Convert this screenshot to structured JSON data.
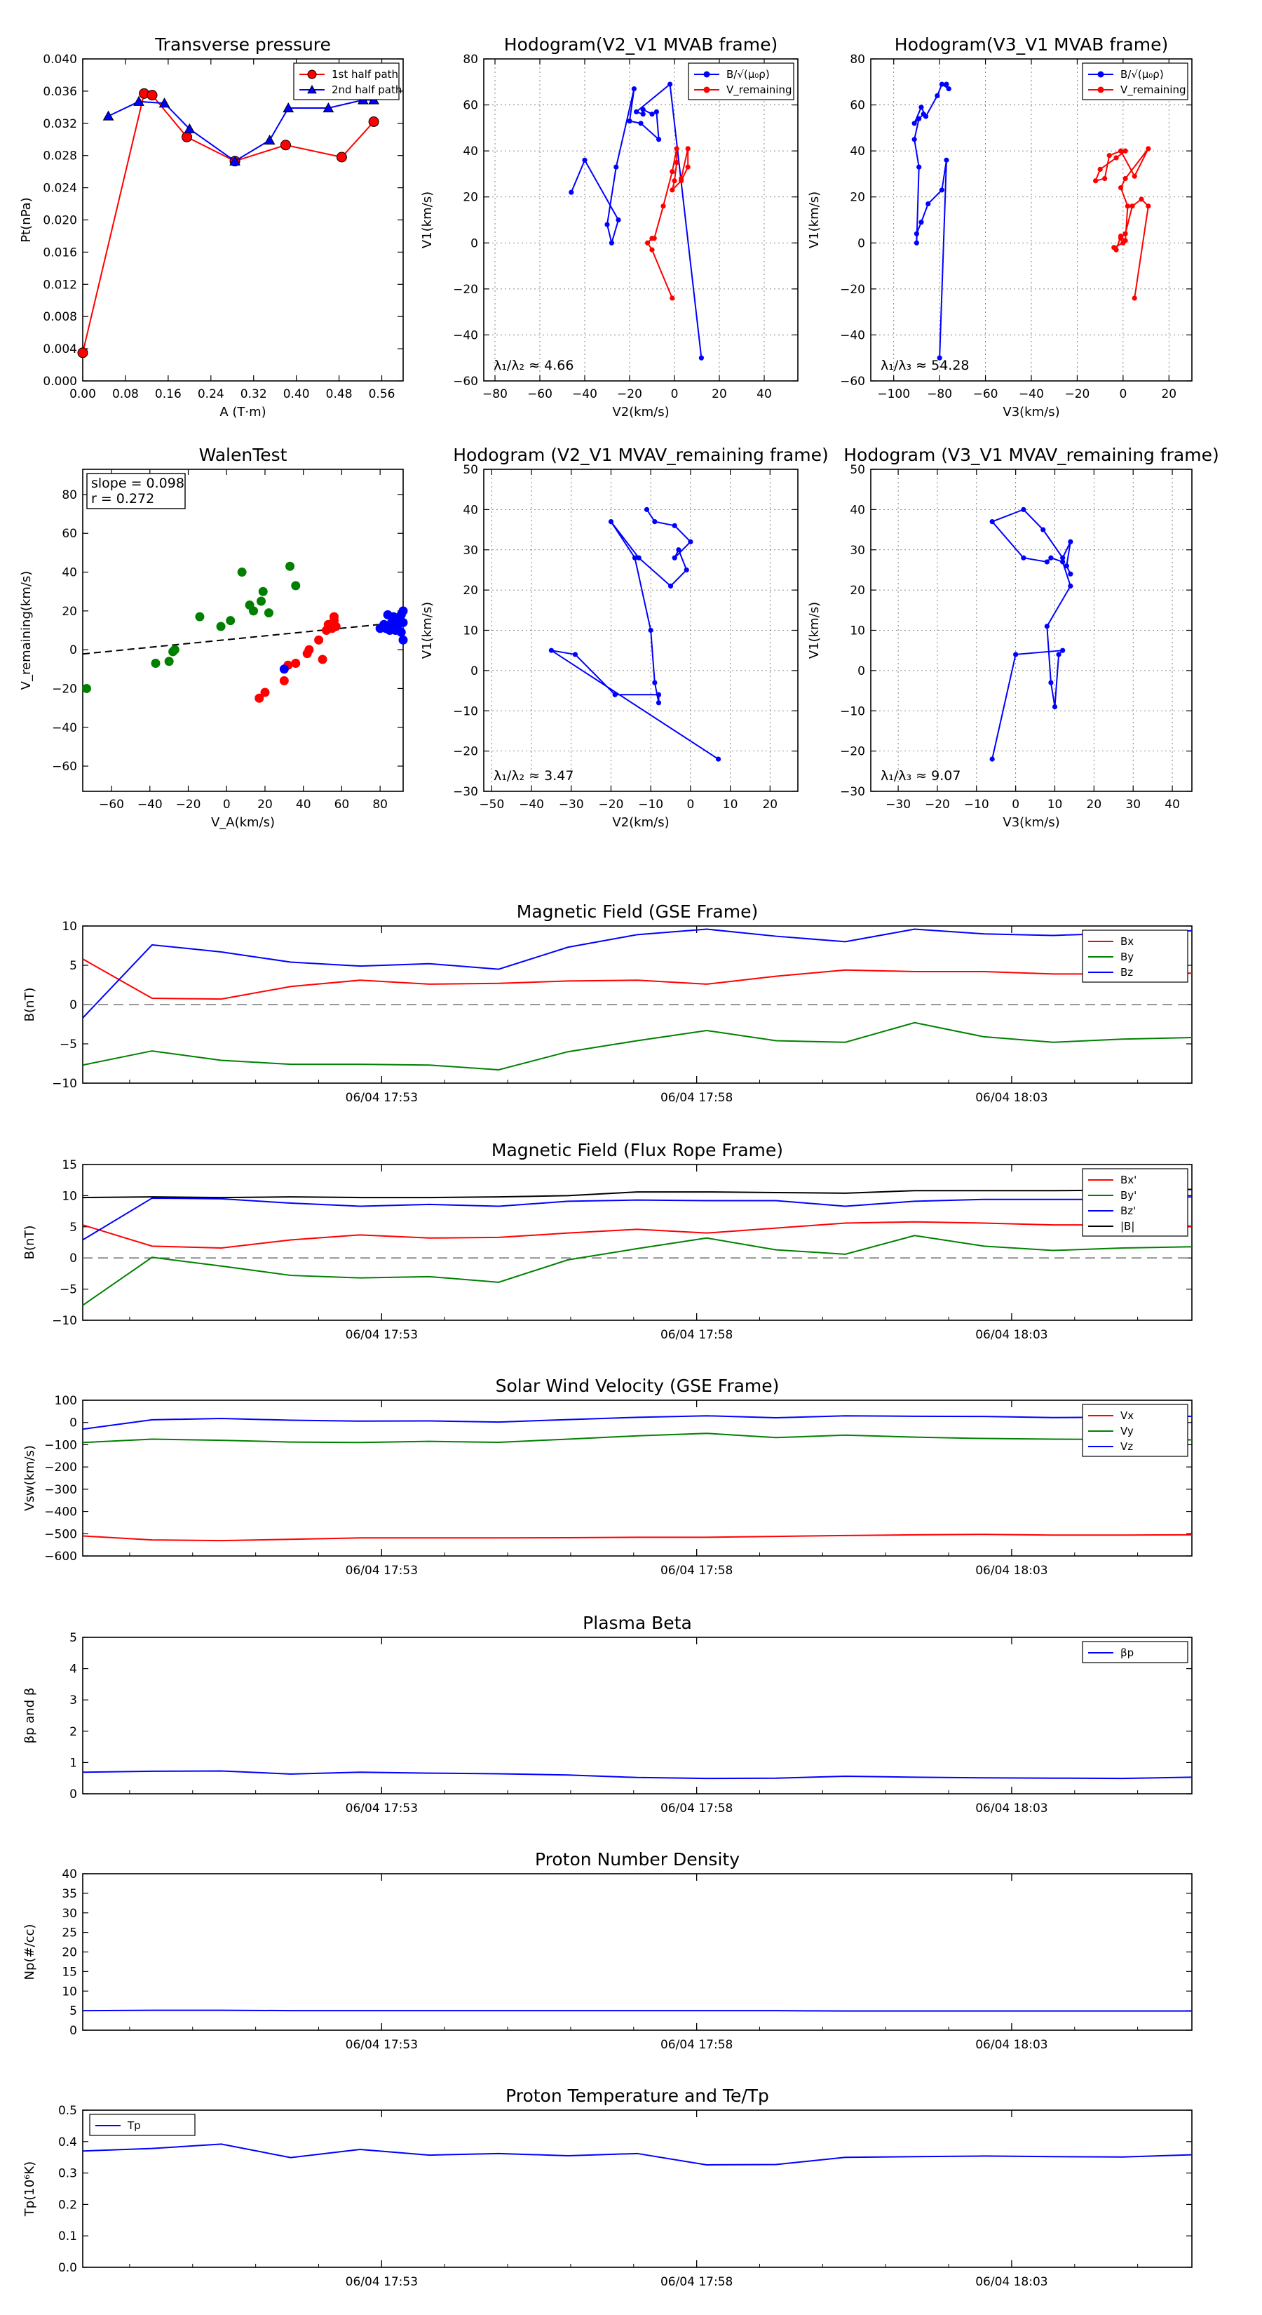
{
  "chart_data": [
    {
      "id": "pt",
      "type": "line",
      "title": "Transverse pressure",
      "xlabel": "A (T·m)",
      "ylabel": "Pt(nPa)",
      "xlim": [
        0.0,
        0.6
      ],
      "ylim": [
        0.0,
        0.04
      ],
      "xticks": [
        0.0,
        0.08,
        0.16,
        0.24,
        0.32,
        0.4,
        0.48,
        0.56
      ],
      "yticks": [
        0.0,
        0.004,
        0.008,
        0.012,
        0.016,
        0.02,
        0.024,
        0.028,
        0.032,
        0.036,
        0.04
      ],
      "xtick_labels": [
        "0.00",
        "0.08",
        "0.16",
        "0.24",
        "0.32",
        "0.40",
        "0.48",
        "0.56"
      ],
      "ytick_labels": [
        "0.000",
        "0.004",
        "0.008",
        "0.012",
        "0.016",
        "0.020",
        "0.024",
        "0.028",
        "0.032",
        "0.036",
        "0.040"
      ],
      "grid": false,
      "legend_position": "top-right",
      "series": [
        {
          "name": "1st half path",
          "color": "#ff0000",
          "marker": "circle",
          "x": [
            0.0,
            0.115,
            0.13,
            0.195,
            0.285,
            0.38,
            0.485,
            0.545
          ],
          "y": [
            0.0035,
            0.0357,
            0.0355,
            0.0303,
            0.0273,
            0.0293,
            0.0278,
            0.0322
          ]
        },
        {
          "name": "2nd half path",
          "color": "#0000ff",
          "marker": "triangle",
          "x": [
            0.048,
            0.105,
            0.153,
            0.2,
            0.285,
            0.35,
            0.385,
            0.46,
            0.525,
            0.545
          ],
          "y": [
            0.0329,
            0.0347,
            0.0345,
            0.0313,
            0.0273,
            0.0299,
            0.0339,
            0.0339,
            0.0349,
            0.0349
          ]
        }
      ]
    },
    {
      "id": "h1",
      "type": "line",
      "title": "Hodogram(V2_V1 MVAB frame)",
      "xlabel": "V2(km/s)",
      "ylabel": "V1(km/s)",
      "xlim": [
        -85,
        55
      ],
      "ylim": [
        -60,
        80
      ],
      "xticks": [
        -80,
        -60,
        -40,
        -20,
        0,
        20,
        40
      ],
      "yticks": [
        -60,
        -40,
        -20,
        0,
        20,
        40,
        60,
        80
      ],
      "grid": true,
      "legend_position": "top-right",
      "annotation": "λ₁/λ₂ ≈ 4.66",
      "series": [
        {
          "name": "B/√(μ₀ρ)",
          "color": "#0000ff",
          "x": [
            12,
            -2,
            -17,
            -14,
            -14,
            -10,
            -8,
            -7,
            -15,
            -20,
            -18,
            -26,
            -30,
            -28,
            -25,
            -40,
            -46
          ],
          "y": [
            -50,
            69,
            57,
            56,
            58,
            56,
            57,
            45,
            52,
            53,
            67,
            33,
            8,
            0,
            10,
            36,
            22
          ]
        },
        {
          "name": "V_remaining",
          "color": "#ff0000",
          "x": [
            -1,
            -10,
            -12,
            -10,
            -9,
            -5,
            -1,
            1,
            1,
            0,
            -1,
            3,
            6,
            6,
            3
          ],
          "y": [
            -24,
            -3,
            0,
            2,
            2,
            16,
            31,
            41,
            35,
            27,
            23,
            27,
            33,
            41,
            28
          ]
        }
      ]
    },
    {
      "id": "h2",
      "type": "line",
      "title": "Hodogram(V3_V1 MVAB frame)",
      "xlabel": "V3(km/s)",
      "ylabel": "V1(km/s)",
      "xlim": [
        -110,
        30
      ],
      "ylim": [
        -60,
        80
      ],
      "xticks": [
        -100,
        -80,
        -60,
        -40,
        -20,
        0,
        20
      ],
      "yticks": [
        -60,
        -40,
        -20,
        0,
        20,
        40,
        60,
        80
      ],
      "grid": true,
      "legend_position": "top-right",
      "annotation": "λ₁/λ₃ ≈ 54.28",
      "series": [
        {
          "name": "B/√(μ₀ρ)",
          "color": "#0000ff",
          "x": [
            -80,
            -77,
            -79,
            -85,
            -88,
            -90,
            -90,
            -89,
            -91,
            -89,
            -87,
            -91,
            -88,
            -86,
            -81,
            -79,
            -76,
            -77
          ],
          "y": [
            -50,
            36,
            23,
            17,
            9,
            4,
            0,
            33,
            45,
            54,
            56,
            52,
            59,
            55,
            64,
            69,
            67,
            69
          ]
        },
        {
          "name": "V_remaining",
          "color": "#ff0000",
          "x": [
            5,
            11,
            8,
            4,
            1,
            -1,
            0,
            -4,
            -3,
            -1,
            1,
            2,
            -1,
            1,
            11,
            5,
            -1,
            -6,
            -8,
            -12,
            -10,
            -3,
            1
          ],
          "y": [
            -24,
            16,
            19,
            16,
            4,
            2,
            0,
            -2,
            -3,
            3,
            1,
            16,
            24,
            28,
            41,
            29,
            40,
            38,
            28,
            27,
            32,
            37,
            40
          ]
        }
      ]
    },
    {
      "id": "walen",
      "type": "scatter",
      "title": "WalenTest",
      "xlabel": "V_A(km/s)",
      "ylabel": "V_remaining(km/s)",
      "xlim": [
        -75,
        92
      ],
      "ylim": [
        -73,
        93
      ],
      "xticks": [
        -60,
        -40,
        -20,
        0,
        20,
        40,
        60,
        80
      ],
      "yticks": [
        -60,
        -40,
        -20,
        0,
        20,
        40,
        60,
        80
      ],
      "grid": false,
      "annotation_lines": [
        "slope = 0.098",
        "r = 0.272"
      ],
      "fit_line": {
        "x": [
          -75,
          92
        ],
        "y": [
          -2.2,
          14.2
        ],
        "color": "#000000",
        "style": "dashed"
      },
      "series": [
        {
          "name": "",
          "color": "#008000",
          "x": [
            -73,
            -37,
            -30,
            -28,
            -27,
            -14,
            -3,
            2,
            8,
            12,
            14,
            18,
            19,
            22,
            33,
            36
          ],
          "y": [
            -20,
            -7,
            -6,
            -1,
            0,
            17,
            12,
            15,
            40,
            23,
            20,
            25,
            30,
            19,
            43,
            33
          ]
        },
        {
          "name": "",
          "color": "#ff0000",
          "x": [
            17,
            20,
            30,
            32,
            36,
            42,
            43,
            48,
            50,
            52,
            53,
            54,
            55,
            56,
            56,
            57
          ],
          "y": [
            -25,
            -22,
            -16,
            -8,
            -7,
            -2,
            0,
            5,
            -5,
            10,
            13,
            13,
            11,
            15,
            17,
            12
          ]
        },
        {
          "name": "",
          "color": "#0000ff",
          "x": [
            30,
            80,
            82,
            83,
            84,
            85,
            86,
            87,
            88,
            89,
            90,
            91,
            91,
            92,
            92,
            92
          ],
          "y": [
            -10,
            11,
            13,
            11,
            18,
            10,
            14,
            17,
            10,
            12,
            15,
            9,
            18,
            14,
            20,
            5
          ]
        }
      ]
    },
    {
      "id": "h3",
      "type": "line",
      "title": "Hodogram (V2_V1 MVAV_remaining frame)",
      "xlabel": "V2(km/s)",
      "ylabel": "V1(km/s)",
      "xlim": [
        -52,
        27
      ],
      "ylim": [
        -30,
        50
      ],
      "xticks": [
        -50,
        -40,
        -30,
        -20,
        -10,
        0,
        10,
        20
      ],
      "yticks": [
        -30,
        -20,
        -10,
        0,
        10,
        20,
        30,
        40,
        50
      ],
      "grid": true,
      "annotation": "λ₁/λ₂ ≈ 3.47",
      "series": [
        {
          "name": "",
          "color": "#0000ff",
          "x": [
            7,
            -35,
            -29,
            -19,
            -8,
            -8,
            -9,
            -10,
            -14,
            -20,
            -13,
            -5,
            -1,
            -3,
            -4,
            0,
            -4,
            -9,
            -11
          ],
          "y": [
            -22,
            5,
            4,
            -6,
            -6,
            -8,
            -3,
            10,
            28,
            37,
            28,
            21,
            25,
            30,
            28,
            32,
            36,
            37,
            40
          ]
        }
      ]
    },
    {
      "id": "h4",
      "type": "line",
      "title": "Hodogram (V3_V1 MVAV_remaining frame)",
      "xlabel": "V3(km/s)",
      "ylabel": "V1(km/s)",
      "xlim": [
        -37,
        45
      ],
      "ylim": [
        -30,
        50
      ],
      "xticks": [
        -30,
        -20,
        -10,
        0,
        10,
        20,
        30,
        40
      ],
      "yticks": [
        -30,
        -20,
        -10,
        0,
        10,
        20,
        30,
        40,
        50
      ],
      "grid": true,
      "annotation": "λ₁/λ₃ ≈ 9.07",
      "series": [
        {
          "name": "",
          "color": "#0000ff",
          "x": [
            -6,
            0,
            12,
            11,
            10,
            9,
            8,
            14,
            12,
            9,
            8,
            2,
            -6,
            2,
            7,
            12,
            14,
            13,
            14
          ],
          "y": [
            -22,
            4,
            5,
            4,
            -9,
            -3,
            11,
            21,
            27,
            28,
            27,
            28,
            37,
            40,
            35,
            28,
            32,
            26,
            24
          ]
        }
      ]
    },
    {
      "id": "bgse",
      "type": "line",
      "title": "Magnetic Field (GSE Frame)",
      "ylabel": "B(nT)",
      "ylim": [
        -10,
        10
      ],
      "yticks": [
        -10,
        -5,
        0,
        5,
        10
      ],
      "xtick_labels": [
        "06/04 17:53",
        "06/04 17:58",
        "06/04 18:03"
      ],
      "legend_position": "top-right",
      "zero_line": true,
      "series": [
        {
          "name": "Bx",
          "color": "#ff0000",
          "values": [
            5.8,
            0.8,
            0.7,
            2.3,
            3.1,
            2.6,
            2.7,
            3.0,
            3.1,
            2.6,
            3.6,
            4.4,
            4.2,
            4.2,
            3.9,
            3.9,
            4.0
          ]
        },
        {
          "name": "By",
          "color": "#008000",
          "values": [
            -7.7,
            -5.9,
            -7.1,
            -7.6,
            -7.6,
            -7.7,
            -8.3,
            -6.0,
            -4.6,
            -3.3,
            -4.6,
            -4.8,
            -2.3,
            -4.1,
            -4.8,
            -4.4,
            -4.2
          ]
        },
        {
          "name": "Bz",
          "color": "#0000ff",
          "values": [
            -1.7,
            7.6,
            6.7,
            5.4,
            4.9,
            5.2,
            4.5,
            7.3,
            8.9,
            9.6,
            8.7,
            8.0,
            9.6,
            9.0,
            8.8,
            9.1,
            9.4
          ]
        }
      ]
    },
    {
      "id": "bfr",
      "type": "line",
      "title": "Magnetic Field (Flux Rope Frame)",
      "ylabel": "B(nT)",
      "ylim": [
        -10,
        15
      ],
      "yticks": [
        -10,
        -5,
        0,
        5,
        10,
        15
      ],
      "xtick_labels": [
        "06/04 17:53",
        "06/04 17:58",
        "06/04 18:03"
      ],
      "legend_position": "top-right",
      "zero_line": true,
      "series": [
        {
          "name": "Bx'",
          "color": "#ff0000",
          "values": [
            5.3,
            1.9,
            1.6,
            2.9,
            3.7,
            3.2,
            3.3,
            4.0,
            4.6,
            4.0,
            4.8,
            5.6,
            5.8,
            5.6,
            5.3,
            5.3,
            5.1
          ]
        },
        {
          "name": "By'",
          "color": "#008000",
          "values": [
            -7.6,
            0.1,
            -1.3,
            -2.8,
            -3.2,
            -3.0,
            -3.9,
            -0.3,
            1.5,
            3.2,
            1.3,
            0.6,
            3.6,
            1.9,
            1.2,
            1.6,
            1.8
          ]
        },
        {
          "name": "Bz'",
          "color": "#0000ff",
          "values": [
            2.9,
            9.6,
            9.5,
            8.8,
            8.3,
            8.6,
            8.3,
            9.1,
            9.3,
            9.2,
            9.2,
            8.3,
            9.1,
            9.4,
            9.4,
            9.4,
            9.8
          ]
        },
        {
          "name": "|B|",
          "color": "#000000",
          "values": [
            9.7,
            9.8,
            9.7,
            9.8,
            9.7,
            9.7,
            9.8,
            10.0,
            10.6,
            10.6,
            10.5,
            10.4,
            10.8,
            10.8,
            10.8,
            10.9,
            11.0
          ]
        }
      ]
    },
    {
      "id": "vsw",
      "type": "line",
      "title": "Solar Wind Velocity (GSE Frame)",
      "ylabel": "Vsw(km/s)",
      "ylim": [
        -600,
        100
      ],
      "yticks": [
        -600,
        -500,
        -400,
        -300,
        -200,
        -100,
        0,
        100
      ],
      "xtick_labels": [
        "06/04 17:53",
        "06/04 17:58",
        "06/04 18:03"
      ],
      "legend_position": "top-right",
      "series": [
        {
          "name": "Vx",
          "color": "#ff0000",
          "values": [
            -510,
            -528,
            -531,
            -525,
            -519,
            -519,
            -519,
            -518,
            -516,
            -516,
            -512,
            -508,
            -505,
            -503,
            -506,
            -506,
            -505
          ]
        },
        {
          "name": "Vy",
          "color": "#008000",
          "values": [
            -90,
            -75,
            -80,
            -88,
            -90,
            -85,
            -89,
            -75,
            -60,
            -49,
            -68,
            -57,
            -66,
            -72,
            -75,
            -76,
            -78
          ]
        },
        {
          "name": "Vz",
          "color": "#0000ff",
          "values": [
            -30,
            12,
            18,
            10,
            6,
            7,
            2,
            13,
            23,
            30,
            21,
            30,
            28,
            27,
            22,
            24,
            28
          ]
        }
      ]
    },
    {
      "id": "beta",
      "type": "line",
      "title": "Plasma Beta",
      "ylabel": "βp and β",
      "ylim": [
        0,
        5
      ],
      "yticks": [
        0,
        1,
        2,
        3,
        4,
        5
      ],
      "xtick_labels": [
        "06/04 17:53",
        "06/04 17:58",
        "06/04 18:03"
      ],
      "legend_position": "top-right",
      "series": [
        {
          "name": "βp",
          "color": "#0000ff",
          "values": [
            0.69,
            0.72,
            0.73,
            0.63,
            0.69,
            0.66,
            0.64,
            0.6,
            0.52,
            0.49,
            0.5,
            0.56,
            0.53,
            0.51,
            0.5,
            0.49,
            0.53
          ]
        }
      ]
    },
    {
      "id": "np",
      "type": "line",
      "title": "Proton Number Density",
      "ylabel": "Np(#/cc)",
      "ylim": [
        0,
        40
      ],
      "yticks": [
        0,
        5,
        10,
        15,
        20,
        25,
        30,
        35,
        40
      ],
      "xtick_labels": [
        "06/04 17:53",
        "06/04 17:58",
        "06/04 18:03"
      ],
      "series": [
        {
          "name": "",
          "color": "#0000ff",
          "values": [
            5.0,
            5.1,
            5.1,
            5.0,
            5.0,
            5.0,
            5.0,
            5.0,
            5.0,
            5.0,
            5.0,
            4.9,
            4.9,
            4.9,
            4.9,
            4.9,
            4.9
          ]
        }
      ]
    },
    {
      "id": "tp",
      "type": "line",
      "title": "Proton Temperature and Te/Tp",
      "ylabel": "Tp(10⁶K)",
      "ylim": [
        0,
        0.5
      ],
      "yticks": [
        0.0,
        0.1,
        0.2,
        0.3,
        0.4,
        0.5
      ],
      "xtick_labels": [
        "06/04 17:53",
        "06/04 17:58",
        "06/04 18:03"
      ],
      "legend_position": "top-left",
      "series": [
        {
          "name": "Tp",
          "color": "#0000ff",
          "values": [
            0.37,
            0.378,
            0.392,
            0.349,
            0.375,
            0.357,
            0.362,
            0.355,
            0.362,
            0.326,
            0.327,
            0.35,
            0.352,
            0.354,
            0.352,
            0.351,
            0.358
          ]
        }
      ]
    }
  ]
}
